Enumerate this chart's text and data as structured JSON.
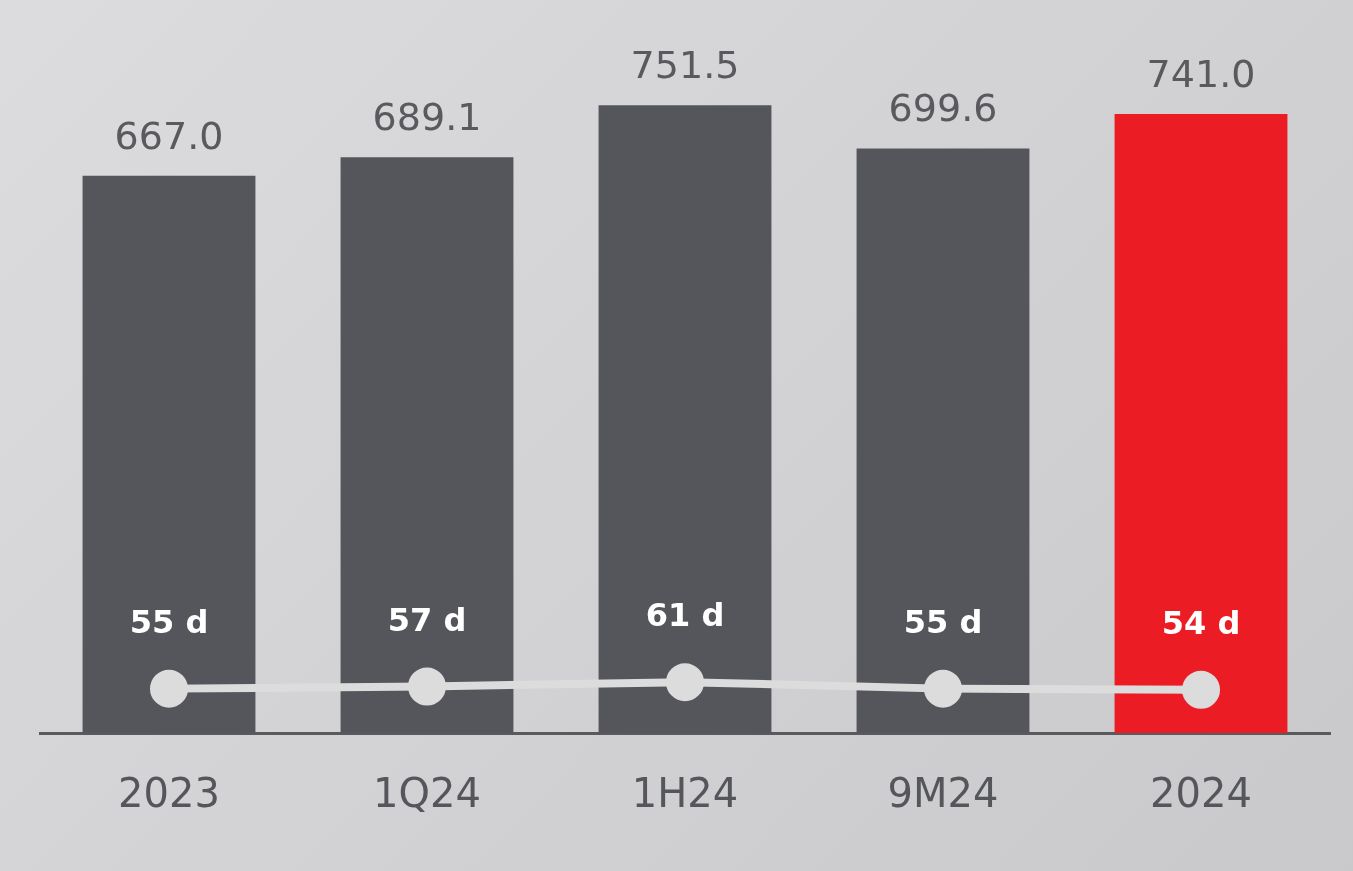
{
  "chart_data": {
    "type": "bar",
    "categories": [
      "2023",
      "1Q24",
      "1H24",
      "9M24",
      "2024"
    ],
    "grid": false,
    "legend": false,
    "tick_labels": "x",
    "series": [
      {
        "colors": [
          "#55565b",
          "#55565b",
          "#55565b",
          "#55565b",
          "#ec1c24"
        ],
        "values": [
          667.0,
          689.1,
          751.5,
          699.6,
          741.0
        ],
        "value_labels": [
          "667.0",
          "689.1",
          "751.5",
          "699.6",
          "741.0"
        ]
      },
      {
        "type": "line",
        "axis": "y2",
        "color": "#dcdcdc",
        "marker": "circle",
        "line_style": "solid",
        "values": [
          55,
          57,
          61,
          55,
          54
        ],
        "value_labels": [
          "55 d",
          "57 d",
          "61 d",
          "55 d",
          "54 d"
        ]
      }
    ]
  }
}
